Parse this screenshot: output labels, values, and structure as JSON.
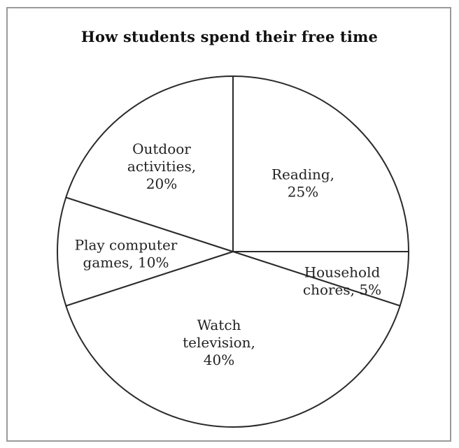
{
  "chart_data": {
    "type": "pie",
    "title": "How students spend their free time",
    "slices": [
      {
        "label": [
          "Reading,",
          "25%"
        ],
        "category": "Reading",
        "value": 25
      },
      {
        "label": [
          "Household",
          "chores, 5%"
        ],
        "category": "Household chores",
        "value": 5
      },
      {
        "label": [
          "Watch",
          "television,",
          "40%"
        ],
        "category": "Watch television",
        "value": 40
      },
      {
        "label": [
          "Play computer",
          "games, 10%"
        ],
        "category": "Play computer games",
        "value": 10
      },
      {
        "label": [
          "Outdoor",
          "activities,",
          "20%"
        ],
        "category": "Outdoor activities",
        "value": 20
      }
    ],
    "start_angle_deg": 0,
    "direction": "clockwise",
    "legend": "none",
    "colors": {
      "fill": "#ffffff",
      "stroke": "#2a2a2a"
    }
  }
}
